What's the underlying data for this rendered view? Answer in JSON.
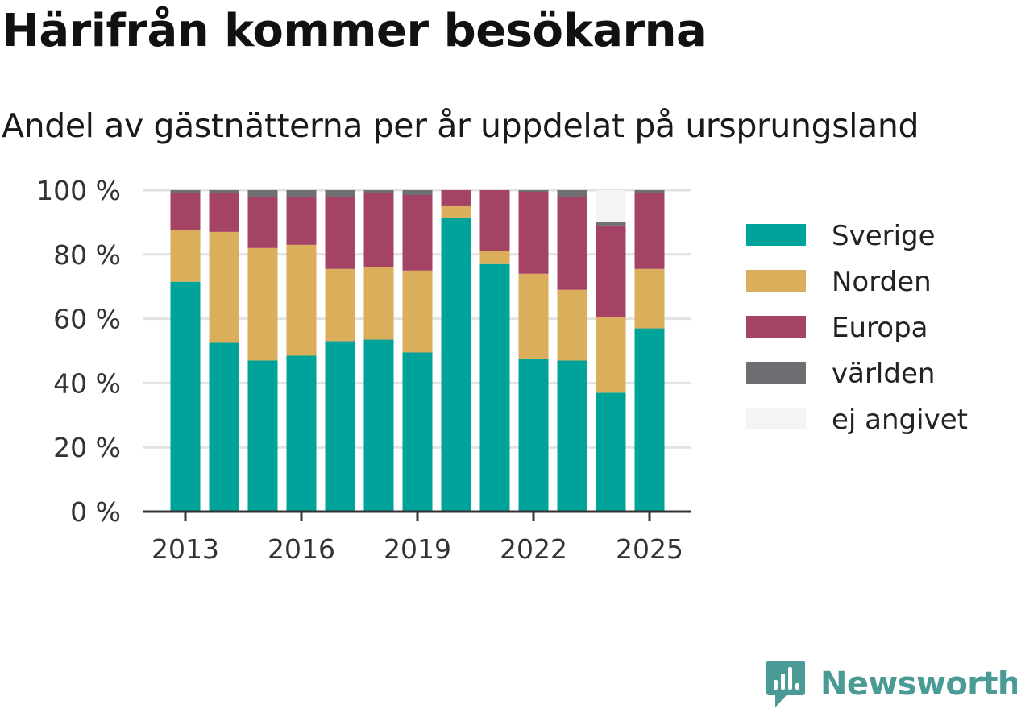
{
  "chart_data": {
    "type": "bar",
    "stacked": true,
    "title": "Härifrån kommer besökarna",
    "subtitle": "Andel av gästnätterna per år uppdelat på ursprungsland",
    "categories": [
      "2013",
      "2014",
      "2015",
      "2016",
      "2017",
      "2018",
      "2019",
      "2020",
      "2021",
      "2022",
      "2023",
      "2024",
      "2025"
    ],
    "x_tick_labels": [
      "2013",
      "2016",
      "2019",
      "2022",
      "2025"
    ],
    "y_tick_labels": [
      "0 %",
      "20 %",
      "40 %",
      "60 %",
      "80 %",
      "100 %"
    ],
    "ylim": [
      0,
      100
    ],
    "legend_position": "right",
    "grid": true,
    "series": [
      {
        "name": "Sverige",
        "color": "#00a39a",
        "values": [
          71.5,
          52.5,
          47,
          48.5,
          53,
          53.5,
          49.5,
          91.5,
          77,
          47.5,
          47,
          37,
          57
        ]
      },
      {
        "name": "Norden",
        "color": "#dbae5c",
        "values": [
          16,
          34.5,
          35,
          34.5,
          22.5,
          22.5,
          25.5,
          3.5,
          4,
          26.5,
          22,
          23.5,
          18.5
        ]
      },
      {
        "name": "Europa",
        "color": "#a54366",
        "values": [
          11.5,
          12,
          16,
          15,
          22.5,
          23,
          23.5,
          5,
          19,
          25.5,
          29,
          28.5,
          23.5
        ]
      },
      {
        "name": "världen",
        "color": "#6f6e73",
        "values": [
          1,
          1,
          2,
          2,
          2,
          1,
          1.5,
          0,
          0,
          0.5,
          2,
          1,
          1
        ]
      },
      {
        "name": "ej angivet",
        "color": "#f4f4f2",
        "values": [
          0,
          0,
          0,
          0,
          0,
          0,
          0,
          0,
          0,
          0,
          0,
          10,
          0
        ]
      }
    ]
  },
  "brand": {
    "name": "Newsworthy",
    "color": "#4a9a96"
  }
}
